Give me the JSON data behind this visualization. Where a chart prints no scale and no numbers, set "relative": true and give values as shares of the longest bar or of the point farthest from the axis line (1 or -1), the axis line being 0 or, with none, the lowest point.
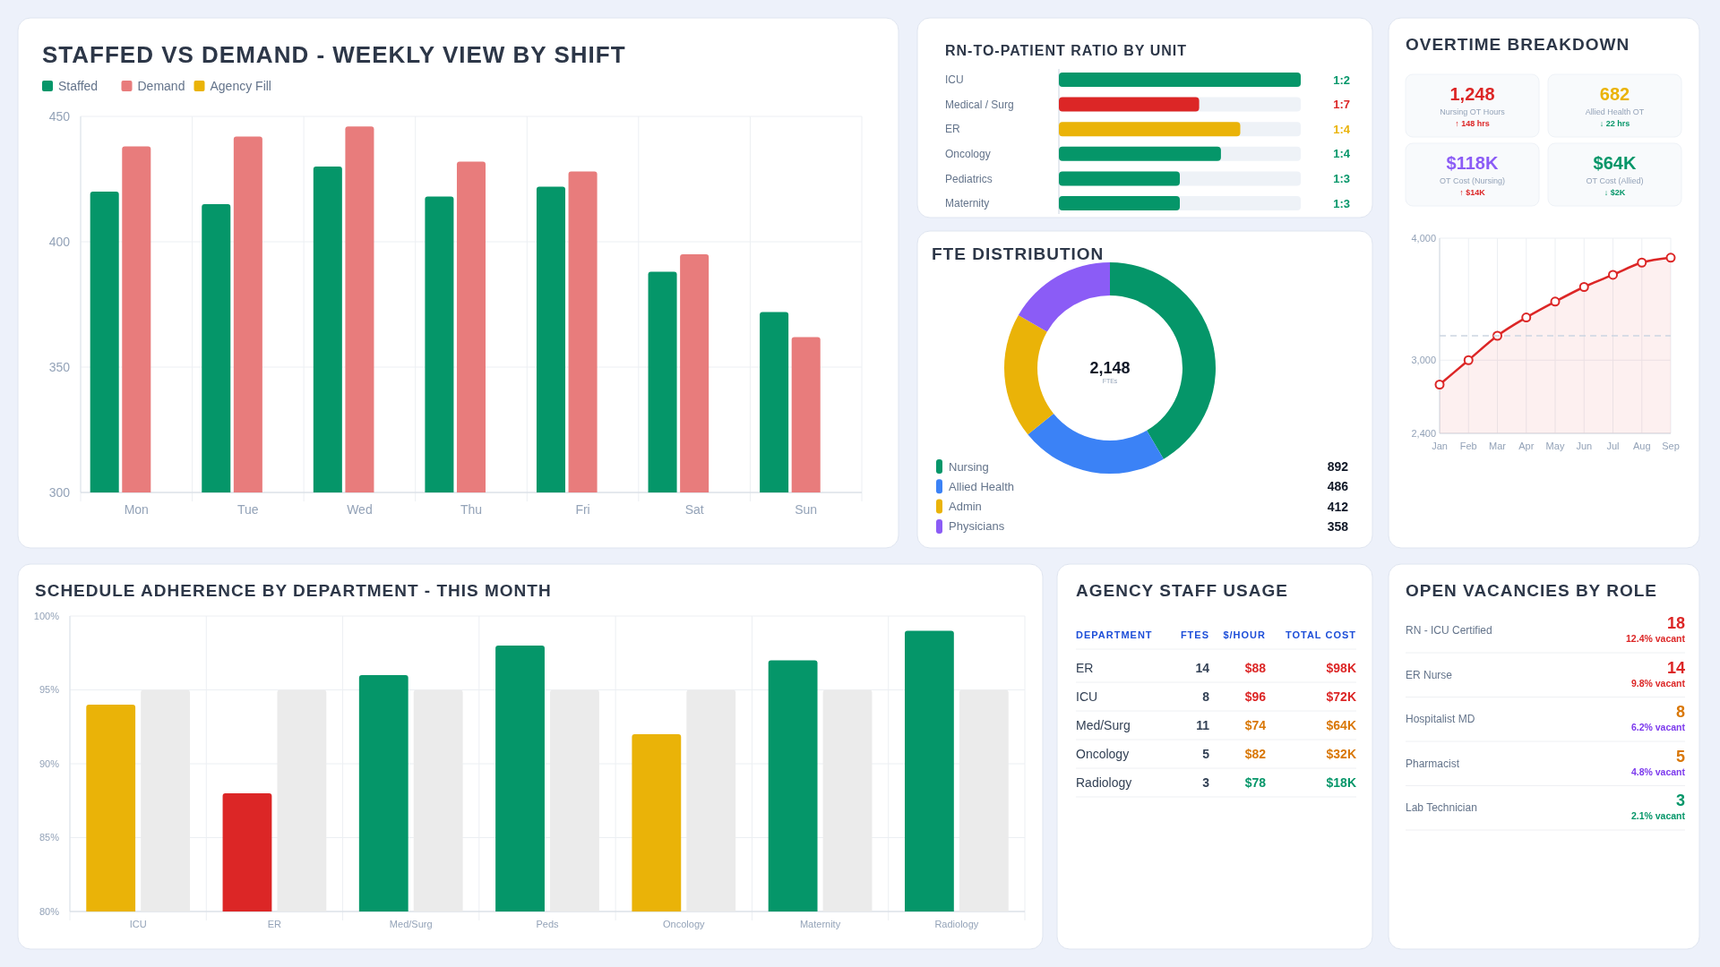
{
  "chart_data": [
    {
      "type": "bar",
      "title": "STAFFED VS DEMAND - WEEKLY VIEW BY SHIFT",
      "categories": [
        "Mon",
        "Tue",
        "Wed",
        "Thu",
        "Fri",
        "Sat",
        "Sun"
      ],
      "series": [
        {
          "name": "Staffed",
          "color": "#059669",
          "values": [
            420,
            415,
            430,
            418,
            422,
            388,
            372
          ]
        },
        {
          "name": "Demand",
          "color": "#e87c7c",
          "values": [
            438,
            442,
            446,
            432,
            428,
            395,
            362
          ]
        },
        {
          "name": "Agency Fill",
          "color": "#eab308",
          "values": [
            null,
            null,
            null,
            null,
            null,
            null,
            null
          ]
        }
      ],
      "ylim": [
        300,
        450
      ],
      "yticks": [
        300,
        350,
        400,
        450
      ],
      "grid": true,
      "legend": "top left"
    },
    {
      "type": "bar",
      "orientation": "horizontal",
      "relative": true,
      "title": "RN-TO-PATIENT RATIO BY UNIT",
      "categories": [
        "ICU",
        "Medical / Surg",
        "ER",
        "Oncology",
        "Pediatrics",
        "Maternity"
      ],
      "values": [
        1,
        0.58,
        0.75,
        0.67,
        0.5,
        0.5
      ],
      "colors": [
        "#059669",
        "#dc2626",
        "#eab308",
        "#059669",
        "#059669",
        "#059669"
      ],
      "annotations": [
        "1:2",
        "1:7",
        "1:4",
        "1:4",
        "1:3",
        "1:3"
      ]
    },
    {
      "type": "donut",
      "title": "FTE DISTRIBUTION",
      "categories": [
        "Nursing",
        "Allied Health",
        "Admin",
        "Physicians"
      ],
      "values": [
        892,
        486,
        412,
        358
      ],
      "colors": [
        "#059669",
        "#3b82f6",
        "#eab308",
        "#8b5cf6"
      ],
      "annotations": [
        "2,148",
        "FTEs"
      ],
      "data_labels": true,
      "legend": "bottom"
    },
    {
      "type": "other",
      "title": "OVERTIME BREAKDOWN",
      "annotations": [
        "1,248",
        "Nursing OT Hours",
        "↑ 148 hrs",
        "682",
        "Allied Health OT",
        "↓ 22 hrs",
        "$118K",
        "OT Cost (Nursing)",
        "↑ $14K",
        "$64K",
        "OT Cost (Allied)",
        "↓ $2K"
      ]
    },
    {
      "type": "area",
      "categories": [
        "Jan",
        "Feb",
        "Mar",
        "Apr",
        "May",
        "Jun",
        "Jul",
        "Aug",
        "Sep"
      ],
      "series": [
        {
          "color": "#dc2626",
          "values": [
            2800,
            3000,
            3200,
            3350,
            3480,
            3600,
            3700,
            3800,
            3840
          ]
        }
      ],
      "ylim": [
        2400,
        4000
      ],
      "yticks": [
        {
          "value": 2400,
          "label": "2,400"
        },
        {
          "value": 3000,
          "label": "3,000"
        },
        {
          "value": 4000,
          "label": "4,000"
        }
      ],
      "grid": true,
      "marker": "circle",
      "ref_lines": [
        {
          "axis": "y",
          "value": 3200,
          "color": "#cbd5e1",
          "line_style": "dashed"
        }
      ]
    },
    {
      "type": "bar",
      "title": "SCHEDULE ADHERENCE BY DEPARTMENT - THIS MONTH",
      "categories": [
        "ICU",
        "ER",
        "Med/Surg",
        "Peds",
        "Oncology",
        "Maternity",
        "Radiology"
      ],
      "series": [
        {
          "colors": [
            "#eab308",
            "#dc2626",
            "#059669",
            "#059669",
            "#eab308",
            "#059669",
            "#059669"
          ],
          "values": [
            94,
            88,
            96,
            98,
            92,
            97,
            99
          ]
        },
        {
          "color": "#ebebeb",
          "values": [
            95,
            95,
            95,
            95,
            95,
            95,
            95
          ]
        }
      ],
      "ylim": [
        80,
        100
      ],
      "yticks": [
        {
          "value": 80,
          "label": "80%"
        },
        {
          "value": 85,
          "label": "85%"
        },
        {
          "value": 90,
          "label": "90%"
        },
        {
          "value": 95,
          "label": "95%"
        },
        {
          "value": 100,
          "label": "100%"
        }
      ],
      "grid": true
    },
    {
      "type": "other",
      "title": "AGENCY STAFF USAGE",
      "annotations": [
        "DEPARTMENT",
        "FTES",
        "$/HOUR",
        "TOTAL COST",
        "ER",
        "14",
        "$88",
        "$98K",
        "ICU",
        "8",
        "$96",
        "$72K",
        "Med/Surg",
        "11",
        "$74",
        "$64K",
        "Oncology",
        "5",
        "$82",
        "$32K",
        "Radiology",
        "3",
        "$78",
        "$18K"
      ]
    },
    {
      "type": "other",
      "title": "OPEN VACANCIES BY ROLE",
      "annotations": [
        "RN - ICU Certified",
        "18",
        "12.4% vacant",
        "ER Nurse",
        "14",
        "9.8% vacant",
        "Hospitalist MD",
        "8",
        "6.2% vacant",
        "Pharmacist",
        "5",
        "4.8% vacant",
        "Lab Technician",
        "3",
        "2.1% vacant"
      ]
    }
  ]
}
